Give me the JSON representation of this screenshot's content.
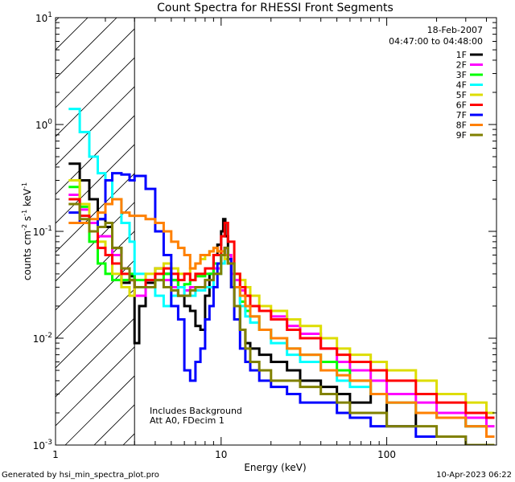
{
  "chart_data": {
    "type": "line",
    "title": "Count Spectra for RHESSI Front Segments",
    "xlabel": "Energy (keV)",
    "ylabel": "counts cm",
    "ylabel_exp1": "-2",
    "ylabel_mid": " s",
    "ylabel_exp2": "-1",
    "ylabel_end": " keV",
    "ylabel_exp3": "-1",
    "x_scale": "log",
    "y_scale": "log",
    "xlim": [
      1,
      460
    ],
    "ylim": [
      0.001,
      10
    ],
    "x_tick_labels": [
      "1",
      "10",
      "100"
    ],
    "y_tick_labels": [
      {
        "base": "10",
        "exp": "-3"
      },
      {
        "base": "10",
        "exp": "-2"
      },
      {
        "base": "10",
        "exp": "-1"
      },
      {
        "base": "10",
        "exp": "0"
      },
      {
        "base": "10",
        "exp": "1"
      }
    ],
    "date": "18-Feb-2007",
    "time_range": "04:47:00 to 04:48:00",
    "note_line1": "Includes Background",
    "note_line2": "Att A0, FDecim 1",
    "hatch_region_max_keV": 3,
    "series": [
      {
        "name": "1F",
        "color": "#000000",
        "x": [
          1.2,
          1.4,
          1.6,
          1.8,
          2.0,
          2.2,
          2.5,
          2.8,
          3.0,
          3.2,
          3.5,
          4.0,
          4.5,
          5.0,
          5.5,
          6.0,
          6.5,
          7.0,
          7.5,
          8.0,
          8.5,
          9.0,
          9.5,
          10.0,
          10.3,
          10.6,
          11.0,
          11.5,
          12,
          13,
          14,
          15,
          17,
          20,
          25,
          30,
          40,
          50,
          60,
          80,
          100,
          150,
          200,
          300,
          400
        ],
        "y": [
          0.43,
          0.3,
          0.2,
          0.13,
          0.11,
          0.07,
          0.033,
          0.038,
          0.009,
          0.02,
          0.033,
          0.045,
          0.04,
          0.035,
          0.025,
          0.02,
          0.018,
          0.013,
          0.012,
          0.025,
          0.04,
          0.06,
          0.075,
          0.1,
          0.13,
          0.09,
          0.05,
          0.03,
          0.02,
          0.012,
          0.009,
          0.008,
          0.007,
          0.006,
          0.005,
          0.004,
          0.0035,
          0.003,
          0.0025,
          0.003,
          0.0015,
          0.002,
          0.0018,
          0.0015,
          0.0012
        ]
      },
      {
        "name": "2F",
        "color": "#ff00ff",
        "x": [
          1.2,
          1.4,
          1.6,
          1.8,
          2.0,
          2.2,
          2.5,
          2.8,
          3.0,
          3.5,
          4.0,
          4.5,
          5.0,
          5.5,
          6.0,
          6.5,
          7.0,
          8.0,
          9.0,
          10.0,
          10.5,
          11.0,
          11.5,
          12,
          13,
          14,
          15,
          17,
          20,
          25,
          30,
          40,
          50,
          60,
          80,
          100,
          150,
          200,
          300,
          400
        ],
        "y": [
          0.22,
          0.16,
          0.12,
          0.09,
          0.09,
          0.06,
          0.045,
          0.035,
          0.025,
          0.03,
          0.035,
          0.035,
          0.03,
          0.025,
          0.028,
          0.03,
          0.03,
          0.035,
          0.045,
          0.06,
          0.07,
          0.06,
          0.04,
          0.035,
          0.028,
          0.025,
          0.02,
          0.018,
          0.016,
          0.013,
          0.011,
          0.008,
          0.006,
          0.005,
          0.004,
          0.003,
          0.0025,
          0.002,
          0.0018,
          0.0015
        ]
      },
      {
        "name": "3F",
        "color": "#00ff00",
        "x": [
          1.2,
          1.4,
          1.6,
          1.8,
          2.0,
          2.2,
          2.5,
          2.8,
          3.0,
          3.5,
          4.0,
          4.5,
          5.0,
          5.5,
          6.0,
          6.5,
          7.0,
          8.0,
          9.0,
          10.0,
          10.5,
          11.0,
          12,
          13,
          14,
          15,
          17,
          20,
          25,
          30,
          40,
          50,
          60,
          80,
          100,
          150,
          200,
          300,
          400
        ],
        "y": [
          0.26,
          0.17,
          0.08,
          0.05,
          0.04,
          0.035,
          0.035,
          0.04,
          0.035,
          0.03,
          0.035,
          0.04,
          0.035,
          0.03,
          0.032,
          0.035,
          0.038,
          0.04,
          0.05,
          0.06,
          0.07,
          0.05,
          0.03,
          0.022,
          0.018,
          0.016,
          0.012,
          0.01,
          0.008,
          0.007,
          0.006,
          0.005,
          0.004,
          0.003,
          0.0025,
          0.002,
          0.0018,
          0.0015,
          0.0012
        ]
      },
      {
        "name": "4F",
        "color": "#00ffff",
        "x": [
          1.2,
          1.4,
          1.6,
          1.8,
          2.0,
          2.2,
          2.5,
          2.8,
          3.0,
          3.5,
          4.0,
          4.5,
          5.0,
          5.5,
          6.0,
          6.5,
          7.0,
          8.0,
          9.0,
          10.0,
          10.5,
          11.0,
          12,
          13,
          14,
          15,
          17,
          20,
          25,
          30,
          40,
          50,
          60,
          80,
          100,
          150,
          200,
          300,
          400
        ],
        "y": [
          1.4,
          0.85,
          0.5,
          0.35,
          0.3,
          0.2,
          0.12,
          0.08,
          0.04,
          0.03,
          0.025,
          0.02,
          0.025,
          0.03,
          0.025,
          0.025,
          0.028,
          0.03,
          0.04,
          0.05,
          0.06,
          0.05,
          0.03,
          0.02,
          0.016,
          0.014,
          0.012,
          0.009,
          0.007,
          0.006,
          0.005,
          0.004,
          0.0035,
          0.003,
          0.0025,
          0.002,
          0.0018,
          0.0015,
          0.0012
        ]
      },
      {
        "name": "5F",
        "color": "#dddd00",
        "x": [
          1.2,
          1.4,
          1.6,
          1.8,
          2.0,
          2.2,
          2.5,
          2.8,
          3.0,
          3.5,
          4.0,
          4.5,
          5.0,
          5.5,
          6.0,
          6.5,
          7.0,
          7.5,
          8.0,
          8.5,
          9.0,
          9.5,
          10.0,
          10.5,
          11.0,
          12,
          13,
          14,
          15,
          17,
          20,
          25,
          30,
          40,
          50,
          60,
          80,
          100,
          150,
          200,
          300,
          400
        ],
        "y": [
          0.3,
          0.18,
          0.1,
          0.08,
          0.06,
          0.04,
          0.03,
          0.025,
          0.03,
          0.04,
          0.045,
          0.05,
          0.045,
          0.04,
          0.04,
          0.045,
          0.05,
          0.055,
          0.06,
          0.065,
          0.07,
          0.065,
          0.06,
          0.055,
          0.05,
          0.04,
          0.035,
          0.03,
          0.025,
          0.02,
          0.018,
          0.015,
          0.013,
          0.01,
          0.008,
          0.007,
          0.006,
          0.005,
          0.004,
          0.003,
          0.0025,
          0.002
        ]
      },
      {
        "name": "6F",
        "color": "#ff0000",
        "x": [
          1.2,
          1.4,
          1.6,
          1.8,
          2.0,
          2.2,
          2.5,
          2.8,
          3.0,
          3.5,
          4.0,
          4.5,
          5.0,
          5.5,
          6.0,
          6.5,
          7.0,
          8.0,
          9.0,
          10.0,
          10.5,
          11.0,
          12,
          13,
          14,
          15,
          17,
          20,
          25,
          30,
          40,
          50,
          60,
          80,
          100,
          150,
          200,
          300,
          400
        ],
        "y": [
          0.2,
          0.14,
          0.1,
          0.07,
          0.06,
          0.05,
          0.04,
          0.035,
          0.03,
          0.035,
          0.04,
          0.045,
          0.04,
          0.035,
          0.04,
          0.035,
          0.04,
          0.045,
          0.06,
          0.09,
          0.12,
          0.08,
          0.04,
          0.03,
          0.025,
          0.02,
          0.018,
          0.015,
          0.012,
          0.01,
          0.008,
          0.007,
          0.006,
          0.005,
          0.004,
          0.003,
          0.0025,
          0.002,
          0.0018
        ]
      },
      {
        "name": "7F",
        "color": "#0000ff",
        "x": [
          1.2,
          1.4,
          1.6,
          1.8,
          2.0,
          2.2,
          2.5,
          2.8,
          3.0,
          3.5,
          4.0,
          4.5,
          5.0,
          5.5,
          6.0,
          6.5,
          7.0,
          7.5,
          8.0,
          8.5,
          9.0,
          9.5,
          10.0,
          10.5,
          11.0,
          11.5,
          12,
          13,
          14,
          15,
          17,
          20,
          25,
          30,
          40,
          50,
          60,
          80,
          100,
          150,
          200,
          300,
          400
        ],
        "y": [
          0.15,
          0.12,
          0.1,
          0.13,
          0.3,
          0.35,
          0.34,
          0.3,
          0.33,
          0.25,
          0.1,
          0.06,
          0.02,
          0.015,
          0.005,
          0.004,
          0.006,
          0.008,
          0.015,
          0.02,
          0.03,
          0.05,
          0.06,
          0.07,
          0.055,
          0.03,
          0.015,
          0.008,
          0.006,
          0.005,
          0.004,
          0.0035,
          0.003,
          0.0025,
          0.0025,
          0.002,
          0.0018,
          0.0015,
          0.0015,
          0.0012,
          0.0012,
          0.001,
          0.001
        ]
      },
      {
        "name": "8F",
        "color": "#ff8000",
        "x": [
          1.2,
          1.4,
          1.6,
          1.8,
          2.0,
          2.2,
          2.5,
          2.8,
          3.0,
          3.5,
          4.0,
          4.5,
          5.0,
          5.5,
          6.0,
          6.5,
          7.0,
          7.5,
          8.0,
          8.5,
          9.0,
          9.5,
          10.0,
          10.5,
          11.0,
          12,
          13,
          14,
          15,
          17,
          20,
          25,
          30,
          40,
          50,
          60,
          80,
          100,
          150,
          200,
          300,
          400
        ],
        "y": [
          0.12,
          0.12,
          0.13,
          0.15,
          0.18,
          0.2,
          0.15,
          0.14,
          0.14,
          0.13,
          0.12,
          0.1,
          0.08,
          0.07,
          0.06,
          0.045,
          0.05,
          0.06,
          0.06,
          0.065,
          0.07,
          0.065,
          0.065,
          0.06,
          0.05,
          0.03,
          0.025,
          0.02,
          0.016,
          0.012,
          0.01,
          0.008,
          0.007,
          0.005,
          0.0045,
          0.004,
          0.003,
          0.0025,
          0.002,
          0.0018,
          0.0015,
          0.0012
        ]
      },
      {
        "name": "9F",
        "color": "#808000",
        "x": [
          1.2,
          1.4,
          1.6,
          1.8,
          2.0,
          2.2,
          2.5,
          2.8,
          3.0,
          3.5,
          4.0,
          4.5,
          5.0,
          5.5,
          6.0,
          6.5,
          7.0,
          8.0,
          9.0,
          10.0,
          10.5,
          11.0,
          12,
          13,
          14,
          15,
          17,
          20,
          25,
          30,
          40,
          50,
          60,
          80,
          100,
          150,
          200,
          300,
          400
        ],
        "y": [
          0.18,
          0.13,
          0.1,
          0.11,
          0.12,
          0.07,
          0.045,
          0.035,
          0.03,
          0.03,
          0.035,
          0.03,
          0.028,
          0.025,
          0.025,
          0.028,
          0.03,
          0.035,
          0.04,
          0.06,
          0.07,
          0.05,
          0.02,
          0.012,
          0.008,
          0.006,
          0.005,
          0.004,
          0.004,
          0.0035,
          0.003,
          0.0025,
          0.002,
          0.002,
          0.0015,
          0.0015,
          0.0012,
          0.001,
          0.001
        ]
      }
    ]
  },
  "footer": {
    "generated_by": "Generated by hsi_min_spectra_plot.pro",
    "timestamp": "10-Apr-2023 06:22"
  }
}
